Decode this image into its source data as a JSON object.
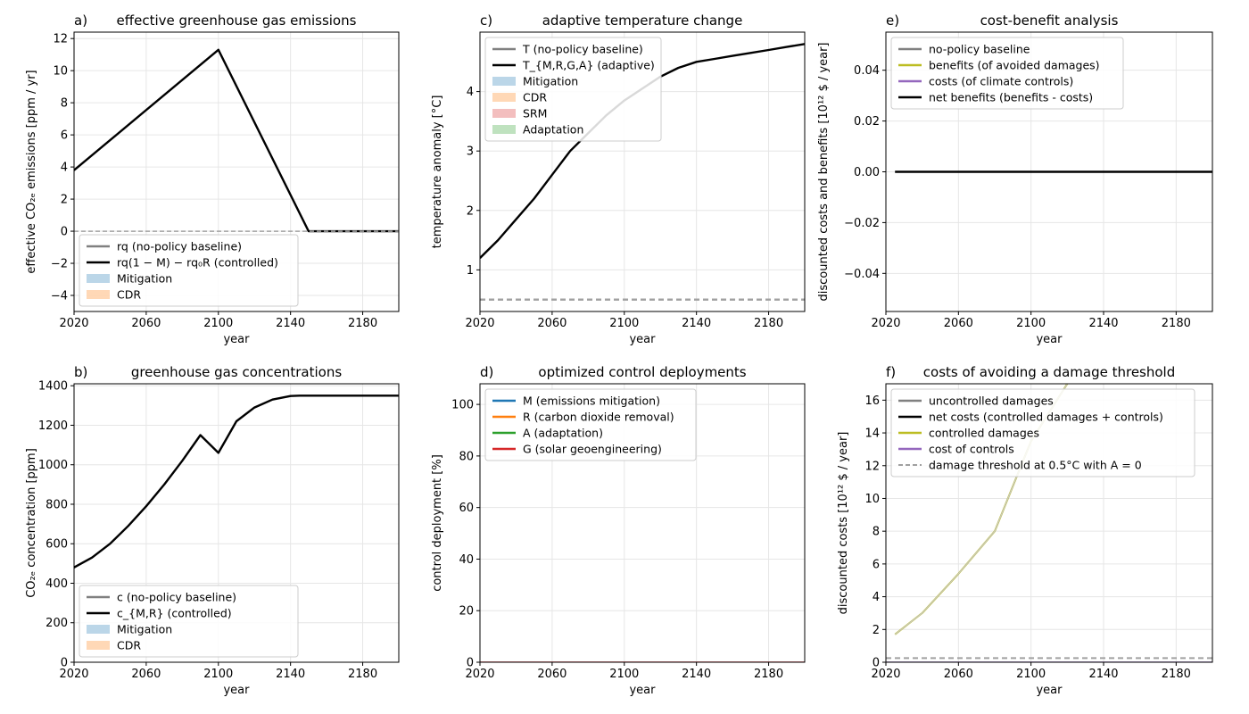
{
  "figure": {
    "colors": {
      "baseline": "#808080",
      "controlled": "#000000",
      "mitigation": "#1f77b4",
      "cdr": "#ff7f0e",
      "srm": "#d62728",
      "adaptation": "#2ca02c",
      "benefits": "#bcbd22",
      "costs": "#9467bd",
      "threshold": "#a0a0a0",
      "grid": "#e6e6e6"
    }
  },
  "chart_data": [
    {
      "id": "a",
      "panel_label": "a)",
      "title": "effective greenhouse gas emissions",
      "type": "line",
      "xlabel": "year",
      "ylabel": "effective CO₂ₑ emissions [ppm / yr]",
      "xlim": [
        2020,
        2200
      ],
      "ylim": [
        -5,
        12.4
      ],
      "xticks": [
        2020,
        2060,
        2100,
        2140,
        2180
      ],
      "yticks": [
        -4,
        -2,
        0,
        2,
        4,
        6,
        8,
        10,
        12
      ],
      "legend_position": "lower-left",
      "legend": [
        {
          "label": "rq (no-policy baseline)",
          "color": "#808080",
          "kind": "line"
        },
        {
          "label": "rq(1 − M) − rq₀R (controlled)",
          "color": "#000000",
          "kind": "line"
        },
        {
          "label": "Mitigation",
          "color": "#1f77b4",
          "kind": "patch"
        },
        {
          "label": "CDR",
          "color": "#ff7f0e",
          "kind": "patch"
        }
      ],
      "series": [
        {
          "name": "rq (no-policy baseline)",
          "color": "#000000",
          "width": 2.4,
          "x": [
            2020,
            2100,
            2150,
            2200
          ],
          "y": [
            3.8,
            11.3,
            0,
            0
          ]
        },
        {
          "name": "",
          "color": "#a0a0a0",
          "width": 1.5,
          "dash": "5,3",
          "x": [
            2020,
            2200
          ],
          "y": [
            0,
            0
          ]
        }
      ]
    },
    {
      "id": "c",
      "panel_label": "c)",
      "title": "adaptive temperature change",
      "type": "line",
      "xlabel": "year",
      "ylabel": "temperature anomaly [°C]",
      "xlim": [
        2020,
        2200
      ],
      "ylim": [
        0.3,
        5.0
      ],
      "xticks": [
        2020,
        2060,
        2100,
        2140,
        2180
      ],
      "yticks": [
        1,
        2,
        3,
        4
      ],
      "legend_position": "upper-left",
      "legend": [
        {
          "label": "T (no-policy baseline)",
          "color": "#808080",
          "kind": "line"
        },
        {
          "label": "T_{M,R,G,A} (adaptive)",
          "color": "#000000",
          "kind": "line"
        },
        {
          "label": "Mitigation",
          "color": "#1f77b4",
          "kind": "patch"
        },
        {
          "label": "CDR",
          "color": "#ff7f0e",
          "kind": "patch"
        },
        {
          "label": "SRM",
          "color": "#d62728",
          "kind": "patch"
        },
        {
          "label": "Adaptation",
          "color": "#2ca02c",
          "kind": "patch"
        }
      ],
      "series": [
        {
          "name": "T (no-policy baseline)",
          "color": "#000000",
          "width": 2.4,
          "x": [
            2020,
            2030,
            2040,
            2050,
            2060,
            2070,
            2080,
            2090,
            2100,
            2110,
            2120,
            2130,
            2140,
            2150,
            2160,
            2170,
            2180,
            2190,
            2200
          ],
          "y": [
            1.2,
            1.5,
            1.85,
            2.2,
            2.6,
            3.0,
            3.3,
            3.6,
            3.85,
            4.05,
            4.25,
            4.4,
            4.5,
            4.55,
            4.6,
            4.65,
            4.7,
            4.75,
            4.8
          ]
        },
        {
          "name": "",
          "color": "#a0a0a0",
          "width": 2.4,
          "dash": "6,4",
          "x": [
            2020,
            2200
          ],
          "y": [
            0.5,
            0.5
          ]
        }
      ]
    },
    {
      "id": "e",
      "panel_label": "e)",
      "title": "cost-benefit analysis",
      "type": "line",
      "xlabel": "year",
      "ylabel": "discounted costs and benefits [10¹² $ / year]",
      "xlim": [
        2020,
        2200
      ],
      "ylim": [
        -0.055,
        0.055
      ],
      "xticks": [
        2020,
        2060,
        2100,
        2140,
        2180
      ],
      "yticks": [
        -0.04,
        -0.02,
        0.0,
        0.02,
        0.04
      ],
      "ytick_labels": [
        "−0.04",
        "−0.02",
        "0.00",
        "0.02",
        "0.04"
      ],
      "legend_position": "upper-left",
      "legend": [
        {
          "label": "no-policy baseline",
          "color": "#808080",
          "kind": "line"
        },
        {
          "label": "benefits (of avoided damages)",
          "color": "#bcbd22",
          "kind": "line"
        },
        {
          "label": "costs (of climate controls)",
          "color": "#9467bd",
          "kind": "line"
        },
        {
          "label": "net benefits (benefits - costs)",
          "color": "#000000",
          "kind": "line"
        }
      ],
      "series": [
        {
          "name": "net benefits (benefits - costs)",
          "color": "#000000",
          "width": 2.4,
          "x": [
            2025,
            2200
          ],
          "y": [
            0,
            0
          ]
        }
      ]
    },
    {
      "id": "b",
      "panel_label": "b)",
      "title": "greenhouse gas concentrations",
      "type": "line",
      "xlabel": "year",
      "ylabel": "CO₂ₑ concentration [ppm]",
      "xlim": [
        2020,
        2200
      ],
      "ylim": [
        0,
        1410
      ],
      "xticks": [
        2020,
        2060,
        2100,
        2140,
        2180
      ],
      "yticks": [
        0,
        200,
        400,
        600,
        800,
        1000,
        1200,
        1400
      ],
      "legend_position": "lower-left",
      "legend": [
        {
          "label": "c (no-policy baseline)",
          "color": "#808080",
          "kind": "line"
        },
        {
          "label": "c_{M,R} (controlled)",
          "color": "#000000",
          "kind": "line"
        },
        {
          "label": "Mitigation",
          "color": "#1f77b4",
          "kind": "patch"
        },
        {
          "label": "CDR",
          "color": "#ff7f0e",
          "kind": "patch"
        }
      ],
      "series": [
        {
          "name": "c (no-policy baseline)",
          "color": "#000000",
          "width": 2.4,
          "x": [
            2020,
            2030,
            2040,
            2050,
            2060,
            2070,
            2080,
            2090,
            2100,
            2110,
            2120,
            2130,
            2140,
            2145,
            2150,
            2200
          ],
          "y": [
            480,
            530,
            600,
            690,
            790,
            900,
            1020,
            1150,
            1060,
            1220,
            1290,
            1330,
            1348,
            1350,
            1350,
            1350
          ]
        }
      ]
    },
    {
      "id": "d",
      "panel_label": "d)",
      "title": "optimized control deployments",
      "type": "line",
      "xlabel": "year",
      "ylabel": "control deployment [%]",
      "xlim": [
        2020,
        2200
      ],
      "ylim": [
        0,
        108
      ],
      "xticks": [
        2020,
        2060,
        2100,
        2140,
        2180
      ],
      "yticks": [
        0,
        20,
        40,
        60,
        80,
        100
      ],
      "legend_position": "upper-left",
      "legend": [
        {
          "label": "M (emissions mitigation)",
          "color": "#1f77b4",
          "kind": "line"
        },
        {
          "label": "R (carbon dioxide removal)",
          "color": "#ff7f0e",
          "kind": "line"
        },
        {
          "label": "A (adaptation)",
          "color": "#2ca02c",
          "kind": "line"
        },
        {
          "label": "G (solar geoengineering)",
          "color": "#d62728",
          "kind": "line"
        }
      ],
      "series": [
        {
          "name": "G (solar geoengineering)",
          "color": "#d62728",
          "width": 1.5,
          "x": [
            2020,
            2200
          ],
          "y": [
            0,
            0
          ]
        }
      ]
    },
    {
      "id": "f",
      "panel_label": "f)",
      "title": "costs of avoiding a damage threshold",
      "type": "line",
      "xlabel": "year",
      "ylabel": "discounted costs [10¹² $ / year]",
      "xlim": [
        2020,
        2200
      ],
      "ylim": [
        0,
        17
      ],
      "xticks": [
        2020,
        2060,
        2100,
        2140,
        2180
      ],
      "yticks": [
        0,
        2,
        4,
        6,
        8,
        10,
        12,
        14,
        16
      ],
      "legend_position": "upper-left",
      "legend": [
        {
          "label": "uncontrolled damages",
          "color": "#808080",
          "kind": "line"
        },
        {
          "label": "net costs (controlled damages + controls)",
          "color": "#000000",
          "kind": "line"
        },
        {
          "label": "controlled damages",
          "color": "#bcbd22",
          "kind": "line"
        },
        {
          "label": "cost of controls",
          "color": "#9467bd",
          "kind": "line"
        },
        {
          "label": "damage threshold at 0.5°C with A = 0",
          "color": "#a0a0a0",
          "kind": "dashed"
        }
      ],
      "series": [
        {
          "name": "controlled damages",
          "color": "#bcbd22",
          "width": 2.0,
          "x": [
            2025,
            2040,
            2060,
            2080,
            2100,
            2120
          ],
          "y": [
            1.7,
            3.0,
            5.4,
            8.0,
            13.5,
            17.0
          ]
        },
        {
          "name": "uncontrolled damages",
          "color": "#c8c8c8",
          "width": 1.2,
          "x": [
            2025,
            2040,
            2060,
            2080,
            2100,
            2120
          ],
          "y": [
            1.7,
            3.0,
            5.4,
            8.0,
            13.5,
            17.0
          ]
        },
        {
          "name": "damage threshold",
          "color": "#a0a0a0",
          "width": 2.0,
          "dash": "6,4",
          "x": [
            2020,
            2200
          ],
          "y": [
            0.25,
            0.25
          ]
        },
        {
          "name": "cost of controls",
          "color": "#9467bd",
          "width": 1.5,
          "x": [
            2020,
            2200
          ],
          "y": [
            0,
            0
          ]
        }
      ]
    }
  ]
}
